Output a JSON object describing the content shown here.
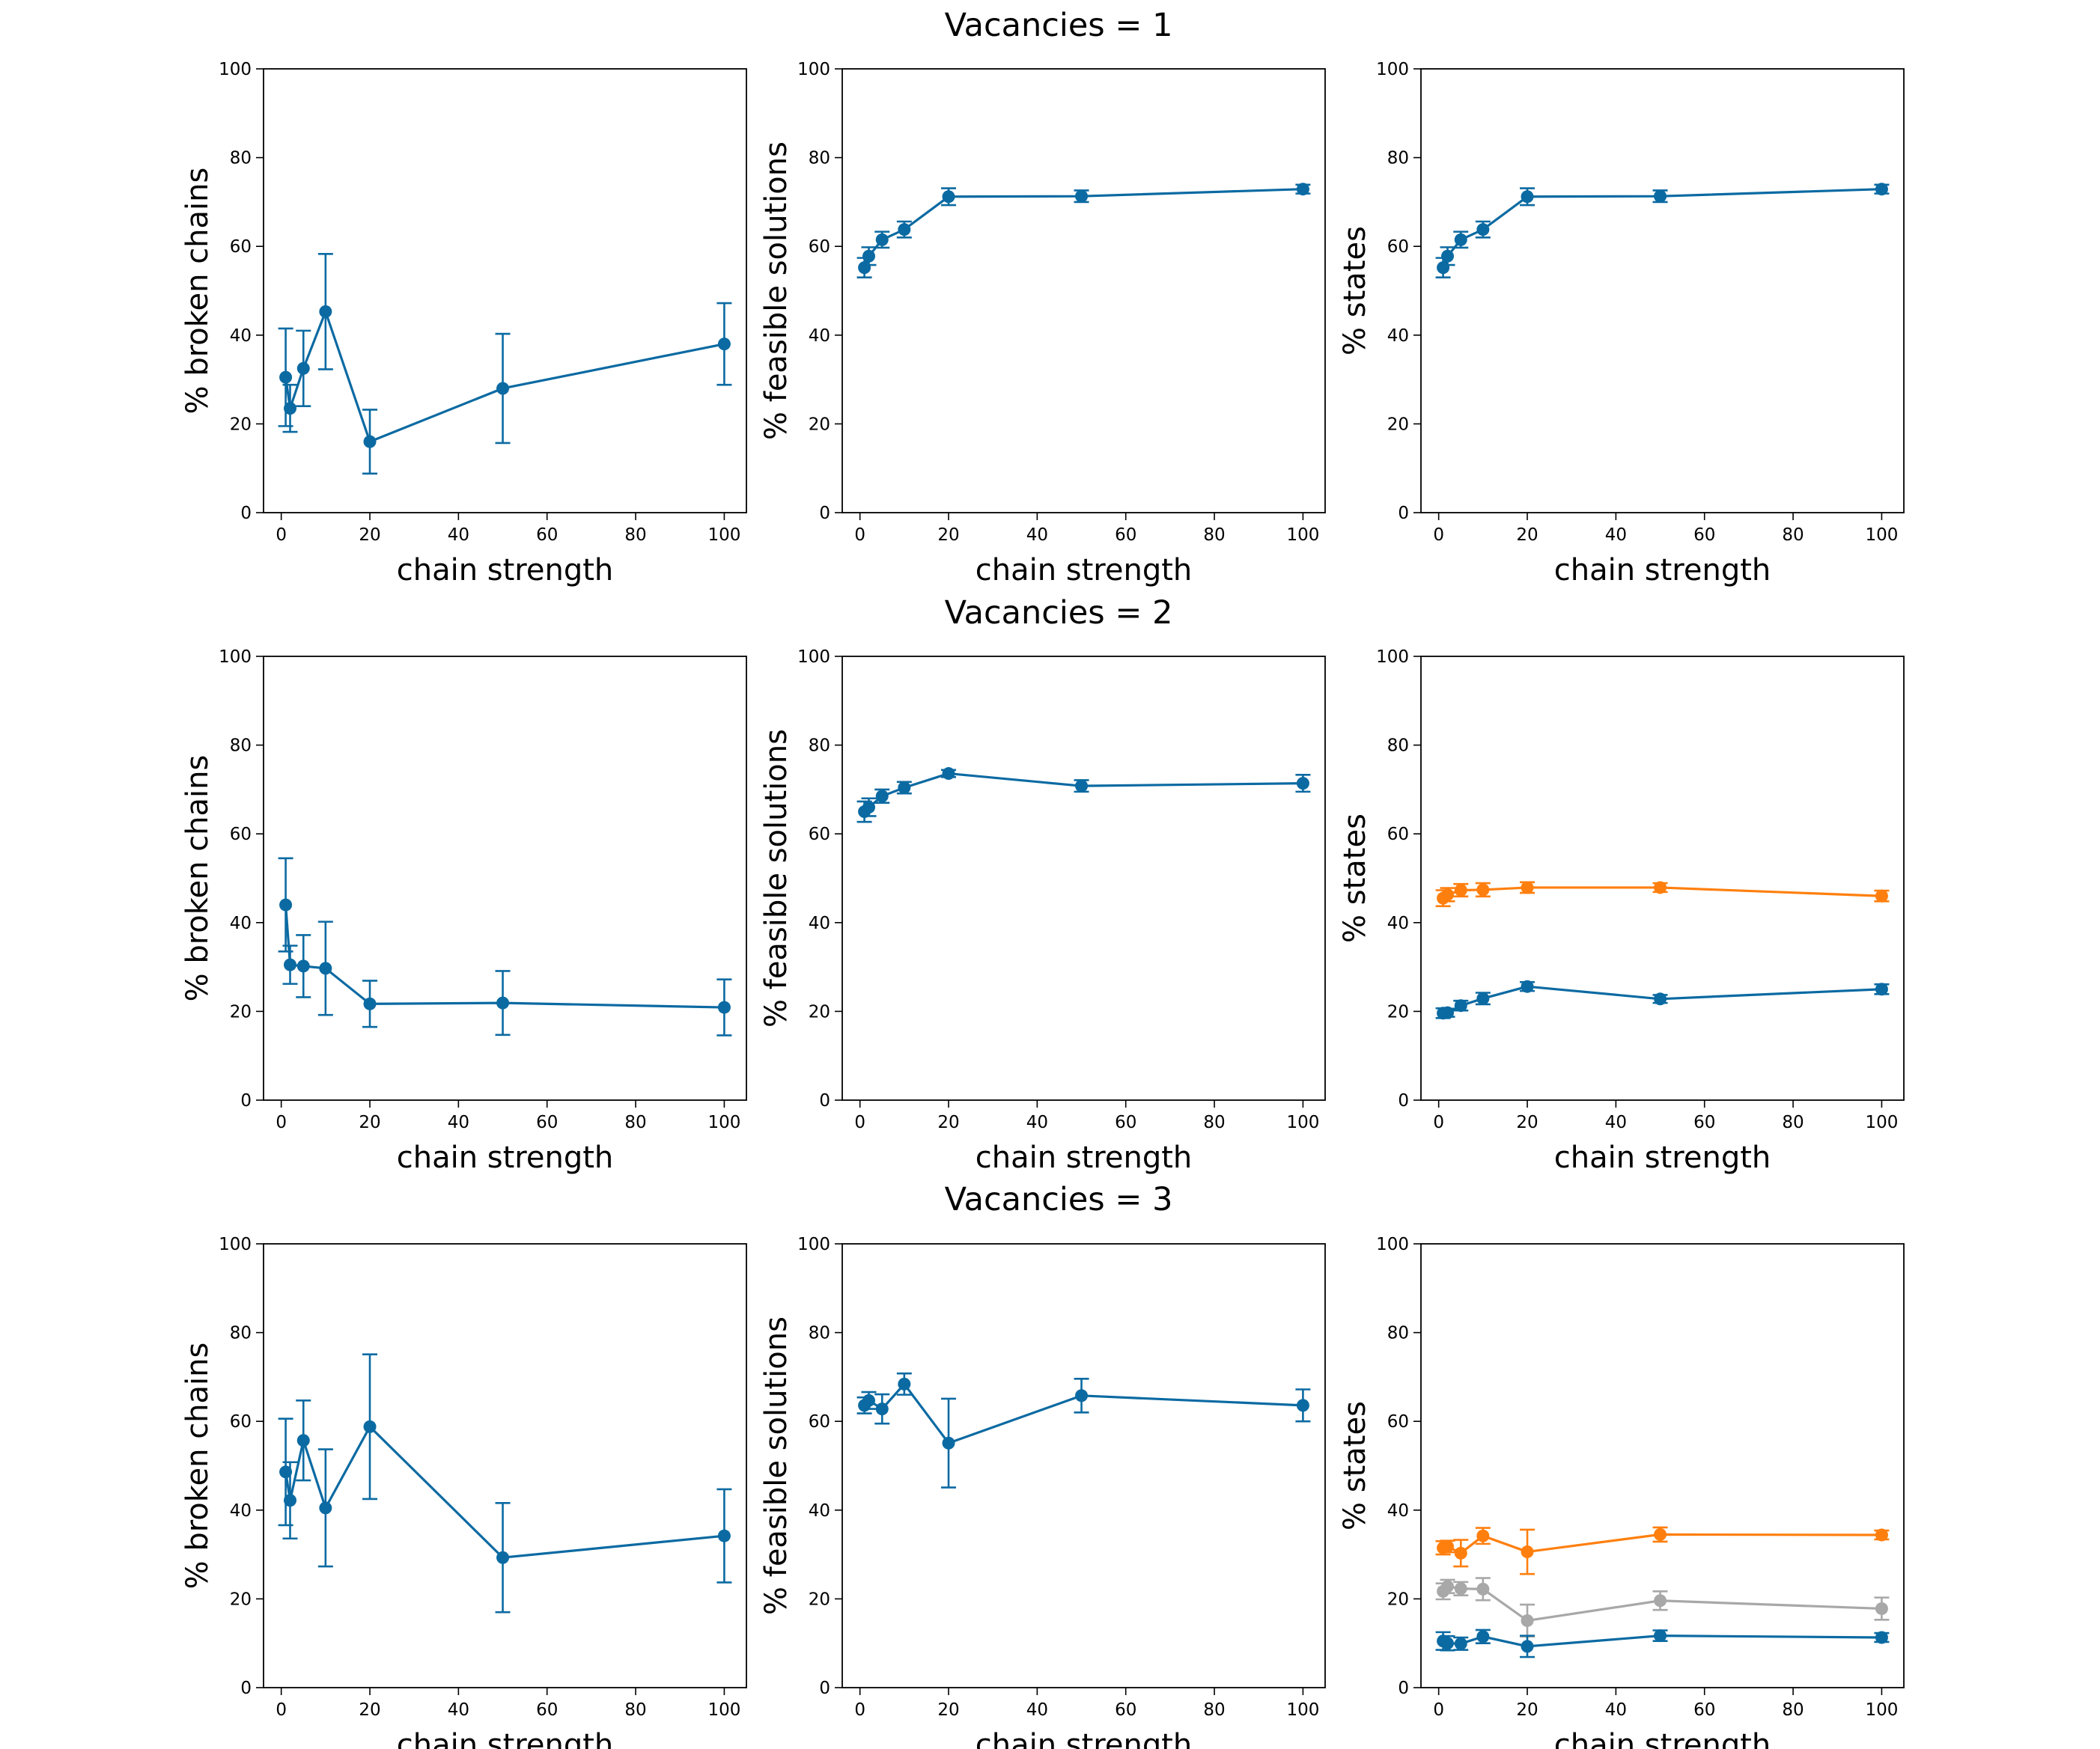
{
  "colors": {
    "blue": "#0b6aa2",
    "orange": "#ff7f0e",
    "gray": "#a8a8a8"
  },
  "rows": [
    {
      "title": "Vacancies = 1"
    },
    {
      "title": "Vacancies = 2"
    },
    {
      "title": "Vacancies = 3"
    }
  ],
  "chart_data": [
    {
      "type": "line",
      "row": 0,
      "col": 0,
      "xlabel": "chain strength",
      "ylabel": "% broken chains",
      "xlim": [
        -4,
        105
      ],
      "ylim": [
        0,
        100
      ],
      "xticks": [
        0,
        20,
        40,
        60,
        80,
        100
      ],
      "yticks": [
        0,
        20,
        40,
        60,
        80,
        100
      ],
      "series": [
        {
          "color": "blue",
          "x": [
            1,
            2,
            5,
            10,
            20,
            50,
            100
          ],
          "y": [
            30.5,
            23.5,
            32.5,
            45.3,
            16.0,
            28.0,
            38.0
          ],
          "err": [
            11.0,
            5.3,
            8.5,
            13.0,
            7.2,
            12.3,
            9.2
          ]
        }
      ]
    },
    {
      "type": "line",
      "row": 0,
      "col": 1,
      "xlabel": "chain strength",
      "ylabel": "% feasible solutions",
      "xlim": [
        -4,
        105
      ],
      "ylim": [
        0,
        100
      ],
      "xticks": [
        0,
        20,
        40,
        60,
        80,
        100
      ],
      "yticks": [
        0,
        20,
        40,
        60,
        80,
        100
      ],
      "series": [
        {
          "color": "blue",
          "x": [
            1,
            2,
            5,
            10,
            20,
            50,
            100
          ],
          "y": [
            55.2,
            57.8,
            61.5,
            63.8,
            71.2,
            71.3,
            72.9
          ],
          "err": [
            2.2,
            2.0,
            1.8,
            1.8,
            1.9,
            1.3,
            1.0
          ]
        }
      ]
    },
    {
      "type": "line",
      "row": 0,
      "col": 2,
      "xlabel": "chain strength",
      "ylabel": "% states",
      "xlim": [
        -4,
        105
      ],
      "ylim": [
        0,
        100
      ],
      "xticks": [
        0,
        20,
        40,
        60,
        80,
        100
      ],
      "yticks": [
        0,
        20,
        40,
        60,
        80,
        100
      ],
      "series": [
        {
          "color": "blue",
          "x": [
            1,
            2,
            5,
            10,
            20,
            50,
            100
          ],
          "y": [
            55.2,
            57.8,
            61.5,
            63.8,
            71.2,
            71.3,
            72.9
          ],
          "err": [
            2.2,
            2.0,
            1.8,
            1.8,
            1.9,
            1.3,
            1.0
          ]
        }
      ]
    },
    {
      "type": "line",
      "row": 1,
      "col": 0,
      "xlabel": "chain strength",
      "ylabel": "% broken chains",
      "xlim": [
        -4,
        105
      ],
      "ylim": [
        0,
        100
      ],
      "xticks": [
        0,
        20,
        40,
        60,
        80,
        100
      ],
      "yticks": [
        0,
        20,
        40,
        60,
        80,
        100
      ],
      "series": [
        {
          "color": "blue",
          "x": [
            1,
            2,
            5,
            10,
            20,
            50,
            100
          ],
          "y": [
            44.0,
            30.5,
            30.2,
            29.7,
            21.7,
            21.9,
            20.9
          ],
          "err": [
            10.5,
            4.3,
            7.0,
            10.5,
            5.2,
            7.2,
            6.3
          ]
        }
      ]
    },
    {
      "type": "line",
      "row": 1,
      "col": 1,
      "xlabel": "chain strength",
      "ylabel": "% feasible solutions",
      "xlim": [
        -4,
        105
      ],
      "ylim": [
        0,
        100
      ],
      "xticks": [
        0,
        20,
        40,
        60,
        80,
        100
      ],
      "yticks": [
        0,
        20,
        40,
        60,
        80,
        100
      ],
      "series": [
        {
          "color": "blue",
          "x": [
            1,
            2,
            5,
            10,
            20,
            50,
            100
          ],
          "y": [
            65.0,
            66.0,
            68.5,
            70.4,
            73.6,
            70.8,
            71.4
          ],
          "err": [
            2.3,
            2.0,
            1.5,
            1.3,
            0.8,
            1.3,
            1.9
          ]
        }
      ]
    },
    {
      "type": "line",
      "row": 1,
      "col": 2,
      "xlabel": "chain strength",
      "ylabel": "% states",
      "xlim": [
        -4,
        105
      ],
      "ylim": [
        0,
        100
      ],
      "xticks": [
        0,
        20,
        40,
        60,
        80,
        100
      ],
      "yticks": [
        0,
        20,
        40,
        60,
        80,
        100
      ],
      "series": [
        {
          "color": "orange",
          "x": [
            1,
            2,
            5,
            10,
            20,
            50,
            100
          ],
          "y": [
            45.5,
            46.3,
            47.3,
            47.4,
            47.9,
            47.9,
            46.0
          ],
          "err": [
            1.8,
            1.5,
            1.4,
            1.5,
            1.2,
            1.0,
            1.2
          ]
        },
        {
          "color": "blue",
          "x": [
            1,
            2,
            5,
            10,
            20,
            50,
            100
          ],
          "y": [
            19.6,
            19.7,
            21.3,
            22.9,
            25.6,
            22.8,
            25.0
          ],
          "err": [
            1.1,
            0.9,
            1.1,
            1.3,
            1.0,
            0.9,
            1.1
          ]
        }
      ]
    },
    {
      "type": "line",
      "row": 2,
      "col": 0,
      "xlabel": "chain strength",
      "ylabel": "% broken chains",
      "xlim": [
        -4,
        105
      ],
      "ylim": [
        0,
        100
      ],
      "xticks": [
        0,
        20,
        40,
        60,
        80,
        100
      ],
      "yticks": [
        0,
        20,
        40,
        60,
        80,
        100
      ],
      "series": [
        {
          "color": "blue",
          "x": [
            1,
            2,
            5,
            10,
            20,
            50,
            100
          ],
          "y": [
            48.6,
            42.2,
            55.7,
            40.5,
            58.8,
            29.3,
            34.2
          ],
          "err": [
            12.0,
            8.6,
            9.0,
            13.2,
            16.3,
            12.3,
            10.5
          ]
        }
      ]
    },
    {
      "type": "line",
      "row": 2,
      "col": 1,
      "xlabel": "chain strength",
      "ylabel": "% feasible solutions",
      "xlim": [
        -4,
        105
      ],
      "ylim": [
        0,
        100
      ],
      "xticks": [
        0,
        20,
        40,
        60,
        80,
        100
      ],
      "yticks": [
        0,
        20,
        40,
        60,
        80,
        100
      ],
      "series": [
        {
          "color": "blue",
          "x": [
            1,
            2,
            5,
            10,
            20,
            50,
            100
          ],
          "y": [
            63.6,
            64.7,
            62.8,
            68.4,
            55.1,
            65.8,
            63.6
          ],
          "err": [
            1.8,
            1.9,
            3.3,
            2.4,
            10.0,
            3.8,
            3.6
          ]
        }
      ]
    },
    {
      "type": "line",
      "row": 2,
      "col": 2,
      "xlabel": "chain strength",
      "ylabel": "% states",
      "xlim": [
        -4,
        105
      ],
      "ylim": [
        0,
        100
      ],
      "xticks": [
        0,
        20,
        40,
        60,
        80,
        100
      ],
      "yticks": [
        0,
        20,
        40,
        60,
        80,
        100
      ],
      "series": [
        {
          "color": "orange",
          "x": [
            1,
            2,
            5,
            10,
            20,
            50,
            100
          ],
          "y": [
            31.5,
            31.8,
            30.3,
            34.2,
            30.6,
            34.5,
            34.4
          ],
          "err": [
            1.5,
            1.3,
            3.0,
            1.8,
            5.0,
            1.6,
            1.0
          ]
        },
        {
          "color": "gray",
          "x": [
            1,
            2,
            5,
            10,
            20,
            50,
            100
          ],
          "y": [
            21.7,
            22.8,
            22.3,
            22.2,
            15.1,
            19.6,
            17.8
          ],
          "err": [
            1.8,
            1.5,
            1.5,
            2.5,
            3.6,
            2.1,
            2.5
          ]
        },
        {
          "color": "blue",
          "x": [
            1,
            2,
            5,
            10,
            20,
            50,
            100
          ],
          "y": [
            10.5,
            10.0,
            9.9,
            11.5,
            9.3,
            11.7,
            11.3
          ],
          "err": [
            2.0,
            1.6,
            1.4,
            1.5,
            2.4,
            1.2,
            1.0
          ]
        }
      ]
    }
  ]
}
